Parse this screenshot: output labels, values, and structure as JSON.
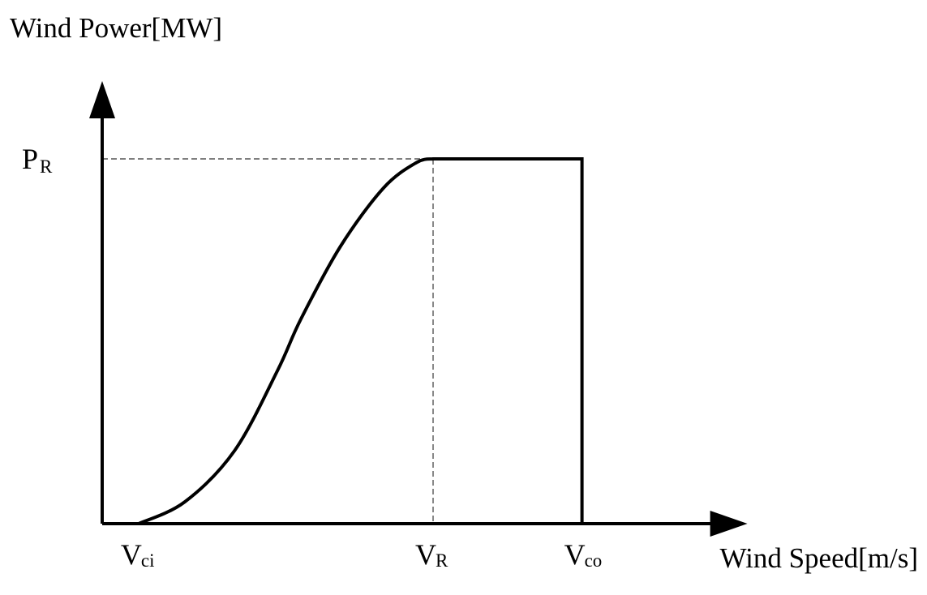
{
  "chart_data": {
    "type": "line",
    "xlabel": "Wind Speed[m/s]",
    "ylabel": "Wind Power[MW]",
    "x_ticks": [
      {
        "main": "V",
        "sub": "ci",
        "value": 0.11
      },
      {
        "main": "V",
        "sub": "R",
        "value": 1.0
      },
      {
        "main": "V",
        "sub": "co",
        "value": 1.45
      }
    ],
    "y_ticks": [
      {
        "main": "P",
        "sub": "R",
        "value": 1.0
      }
    ],
    "xlim": [
      0,
      1.95
    ],
    "ylim": [
      0,
      1.2
    ],
    "grid": false,
    "series": [
      {
        "points": [
          [
            0.11,
            0.0
          ],
          [
            0.25,
            0.06
          ],
          [
            0.4,
            0.2
          ],
          [
            0.53,
            0.42
          ],
          [
            0.6,
            0.56
          ],
          [
            0.72,
            0.76
          ],
          [
            0.85,
            0.92
          ],
          [
            0.95,
            0.99
          ],
          [
            1.0,
            1.0
          ],
          [
            1.45,
            1.0
          ],
          [
            1.45,
            0.0
          ]
        ]
      }
    ],
    "reference_lines": [
      {
        "from": [
          0,
          1.0
        ],
        "to": [
          1.0,
          1.0
        ]
      },
      {
        "from": [
          1.0,
          1.0
        ],
        "to": [
          1.0,
          0.0
        ]
      }
    ]
  }
}
